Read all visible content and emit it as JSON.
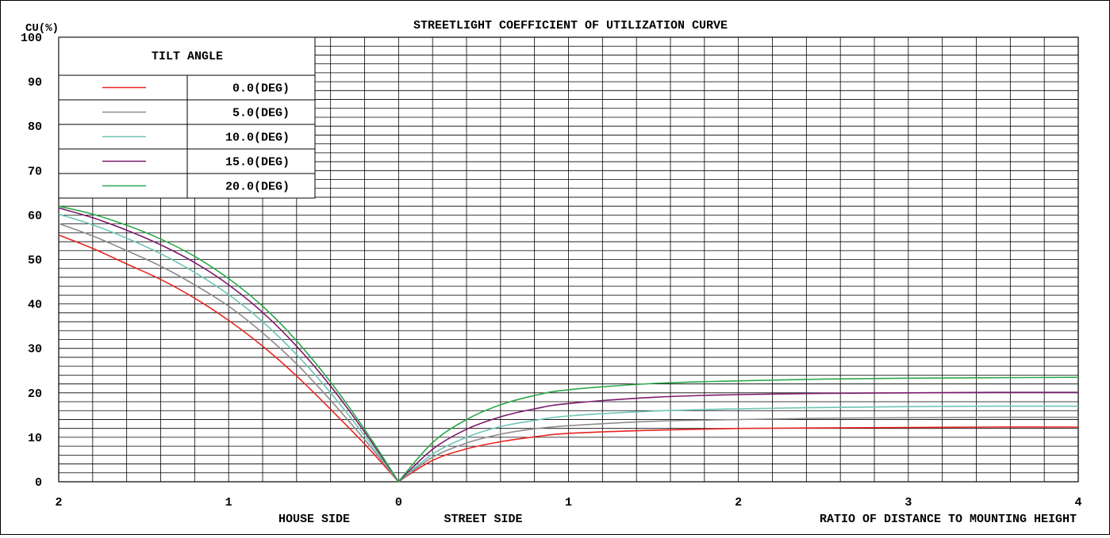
{
  "chart_data": {
    "type": "line",
    "title": "STREETLIGHT COEFFICIENT OF UTILIZATION CURVE",
    "ylabel": "CU(%)",
    "xlabel": "RATIO OF DISTANCE TO MOUNTING HEIGHT",
    "house_side_label": "HOUSE SIDE",
    "street_side_label": "STREET SIDE",
    "ylim": [
      0,
      100
    ],
    "xlim": [
      -2,
      4
    ],
    "y_ticks": [
      0,
      10,
      20,
      30,
      40,
      50,
      60,
      70,
      80,
      90,
      100
    ],
    "x_ticks": [
      {
        "value": -2,
        "label": "2"
      },
      {
        "value": -1,
        "label": "1"
      },
      {
        "value": 0,
        "label": "0"
      },
      {
        "value": 1,
        "label": "1"
      },
      {
        "value": 2,
        "label": "2"
      },
      {
        "value": 3,
        "label": "3"
      },
      {
        "value": 4,
        "label": "4"
      }
    ],
    "grid": true,
    "legend": {
      "title": "TILT ANGLE",
      "position": "top-left",
      "entries": [
        {
          "label": "0.0(DEG)",
          "color": "#e8251f"
        },
        {
          "label": "5.0(DEG)",
          "color": "#8c8c8c"
        },
        {
          "label": "10.0(DEG)",
          "color": "#6fc4b4"
        },
        {
          "label": "15.0(DEG)",
          "color": "#7b1a6e"
        },
        {
          "label": "20.0(DEG)",
          "color": "#2ea84a"
        }
      ]
    },
    "x": [
      -2.0,
      -1.8,
      -1.6,
      -1.4,
      -1.2,
      -1.0,
      -0.8,
      -0.6,
      -0.4,
      -0.2,
      0,
      0.2,
      0.4,
      0.6,
      0.8,
      1.0,
      1.5,
      2.0,
      2.5,
      3.0,
      3.5,
      4.0
    ],
    "series": [
      {
        "name": "0.0(DEG)",
        "color": "#e8251f",
        "values": [
          55.5,
          52.5,
          49.0,
          45.5,
          41.3,
          36.3,
          30.5,
          23.8,
          16.3,
          8.5,
          0,
          4.8,
          7.4,
          9.0,
          10.1,
          10.9,
          11.6,
          12.0,
          12.1,
          12.2,
          12.3,
          12.3
        ]
      },
      {
        "name": "5.0(DEG)",
        "color": "#8c8c8c",
        "values": [
          58.1,
          55.3,
          52.0,
          48.5,
          44.3,
          39.5,
          33.5,
          26.5,
          18.3,
          9.5,
          0,
          5.5,
          8.7,
          10.7,
          11.9,
          12.6,
          13.6,
          14.0,
          14.3,
          14.4,
          14.5,
          14.5
        ]
      },
      {
        "name": "10.0(DEG)",
        "color": "#6fc4b4",
        "values": [
          60.2,
          57.8,
          54.8,
          51.3,
          47.1,
          42.1,
          36.0,
          28.6,
          20.0,
          10.4,
          0,
          6.2,
          10.0,
          12.4,
          13.8,
          14.8,
          15.9,
          16.4,
          16.7,
          16.9,
          17.0,
          17.0
        ]
      },
      {
        "name": "15.0(DEG)",
        "color": "#7b1a6e",
        "values": [
          61.6,
          59.4,
          56.6,
          53.3,
          49.3,
          44.3,
          38.1,
          30.5,
          21.5,
          11.2,
          0,
          7.3,
          11.8,
          14.6,
          16.4,
          17.6,
          19.0,
          19.6,
          19.9,
          20.0,
          20.1,
          20.1
        ]
      },
      {
        "name": "20.0(DEG)",
        "color": "#2ea84a",
        "values": [
          62.0,
          60.2,
          57.7,
          54.6,
          50.7,
          45.7,
          39.5,
          31.7,
          22.4,
          11.8,
          0,
          8.8,
          14.0,
          17.3,
          19.4,
          20.7,
          22.1,
          22.7,
          23.1,
          23.3,
          23.4,
          23.5
        ]
      }
    ]
  }
}
